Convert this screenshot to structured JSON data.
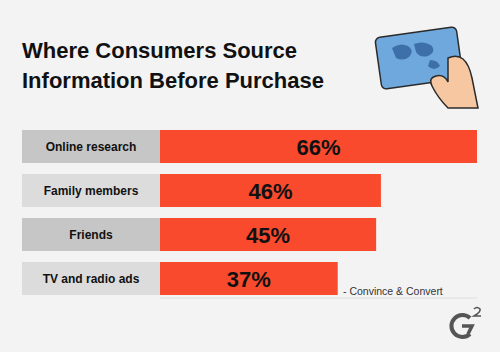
{
  "chart_data": {
    "type": "bar",
    "orientation": "horizontal",
    "title": "Where Consumers Source Information Before Purchase",
    "categories": [
      "Online research",
      "Family members",
      "Friends",
      "TV and radio ads"
    ],
    "values": [
      66,
      46,
      45,
      37
    ],
    "value_labels": [
      "66%",
      "46%",
      "45%",
      "37%"
    ],
    "xlim": [
      0,
      66
    ],
    "color": "#fa4a2e",
    "data_labels": true,
    "tick_labels": "y",
    "grid": false,
    "annotations": [
      "- Convince & Convert"
    ]
  }
}
